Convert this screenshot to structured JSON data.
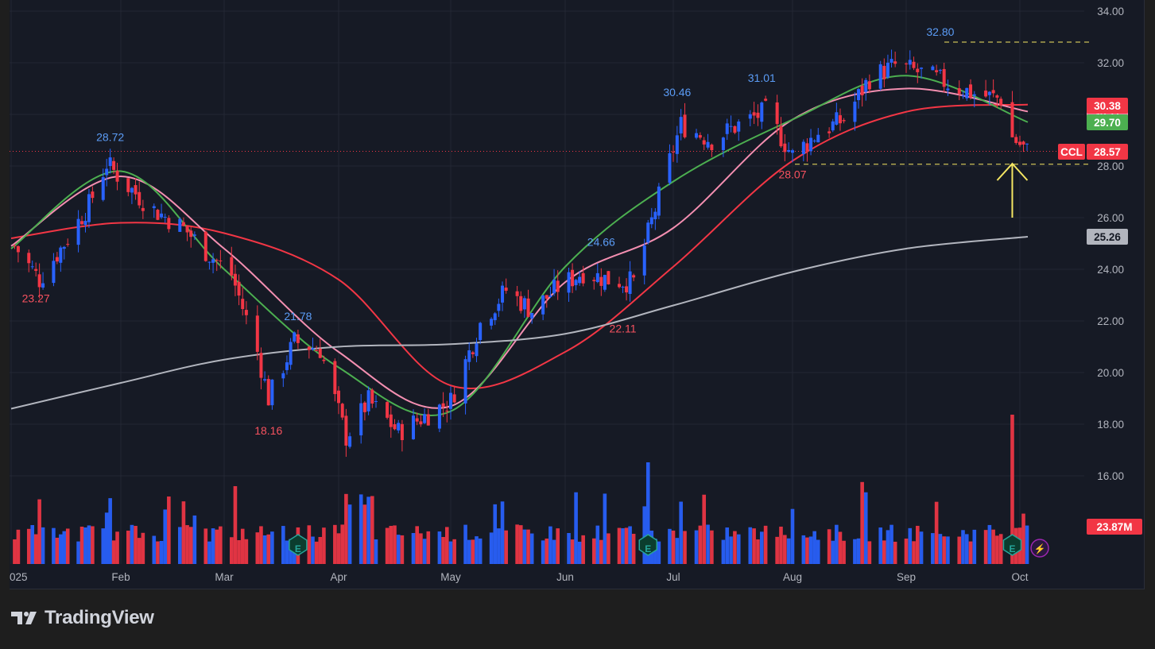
{
  "brand": {
    "name": "TradingView"
  },
  "chart_data": {
    "type": "candlestick",
    "symbol": "CCL",
    "x_axis": {
      "labels": [
        "2025",
        "Feb",
        "Mar",
        "Apr",
        "May",
        "Jun",
        "Jul",
        "Aug",
        "Sep",
        "Oct"
      ]
    },
    "y_axis": {
      "range": [
        14.0,
        34.0
      ],
      "ticks": [
        "16.00",
        "18.00",
        "20.00",
        "22.00",
        "24.00",
        "26.00",
        "28.00",
        "30.00",
        "32.00",
        "34.00"
      ]
    },
    "price_badges": [
      {
        "label": "CCL",
        "value": "28.57",
        "color": "#f23645"
      },
      {
        "label": "",
        "value": "30.38",
        "color": "#f23645"
      },
      {
        "label": "",
        "value": "30.11",
        "color": "#f48fb1"
      },
      {
        "label": "",
        "value": "29.70",
        "color": "#4caf50"
      },
      {
        "label": "",
        "value": "25.26",
        "color": "#b2b5be"
      },
      {
        "label": "",
        "value": "23.87M",
        "color": "#f23645"
      }
    ],
    "annotations": [
      {
        "text": "23.27",
        "x": "2025-01-08",
        "y": 23.27,
        "kind": "low"
      },
      {
        "text": "28.72",
        "x": "2025-01-29",
        "y": 28.72,
        "kind": "high"
      },
      {
        "text": "21.78",
        "x": "2025-03-21",
        "y": 21.78,
        "kind": "high"
      },
      {
        "text": "18.16",
        "x": "2025-03-13",
        "y": 18.16,
        "kind": "low"
      },
      {
        "text": "24.66",
        "x": "2025-06-11",
        "y": 24.66,
        "kind": "high"
      },
      {
        "text": "22.11",
        "x": "2025-06-17",
        "y": 22.11,
        "kind": "low"
      },
      {
        "text": "30.46",
        "x": "2025-07-02",
        "y": 30.46,
        "kind": "high"
      },
      {
        "text": "31.01",
        "x": "2025-07-24",
        "y": 31.01,
        "kind": "high"
      },
      {
        "text": "28.07",
        "x": "2025-08-01",
        "y": 28.07,
        "kind": "low"
      },
      {
        "text": "32.80",
        "x": "2025-09-10",
        "y": 32.8,
        "kind": "high"
      }
    ],
    "levels": [
      {
        "value": 32.8,
        "style": "dashed",
        "color": "#f5e663"
      },
      {
        "value": 28.07,
        "style": "dashed",
        "color": "#f5e663"
      },
      {
        "value": 28.57,
        "style": "dotted",
        "color": "#f23645"
      }
    ],
    "series": [
      {
        "name": "",
        "color": "#f23645",
        "values_at_labels": [
          25.2,
          25.8,
          25.4,
          23.6,
          19.5,
          20.8,
          24.1,
          28.2,
          30.1,
          30.38
        ]
      },
      {
        "name": "",
        "color": "#f48fb1",
        "values_at_labels": [
          24.9,
          27.6,
          24.8,
          20.8,
          18.7,
          23.5,
          25.6,
          29.8,
          31.0,
          30.11
        ]
      },
      {
        "name": "",
        "color": "#4caf50",
        "values_at_labels": [
          24.8,
          27.8,
          24.0,
          20.2,
          18.5,
          24.1,
          27.4,
          29.8,
          31.5,
          29.7
        ]
      },
      {
        "name": "",
        "color": "#b2b5be",
        "values_at_labels": [
          18.6,
          19.6,
          20.5,
          21.0,
          21.1,
          21.5,
          22.6,
          23.9,
          24.8,
          25.26
        ]
      }
    ],
    "volume": {
      "last": "23.87M",
      "events": [
        {
          "date": "2025-03-21",
          "label": "E"
        },
        {
          "date": "2025-06-24",
          "label": "E"
        },
        {
          "date": "2025-09-29",
          "label": "E"
        },
        {
          "date": "2025-10-03",
          "label": "⚡"
        }
      ]
    },
    "marker": {
      "type": "arrow-up",
      "color": "#f5e663",
      "date": "2025-09-29"
    },
    "candles_approx": [
      {
        "d": "2025-01-02",
        "c": 24.9
      },
      {
        "d": "2025-01-09",
        "c": 23.6
      },
      {
        "d": "2025-01-16",
        "c": 25.0
      },
      {
        "d": "2025-01-23",
        "c": 26.5
      },
      {
        "d": "2025-01-28",
        "c": 28.1
      },
      {
        "d": "2025-02-03",
        "c": 27.2
      },
      {
        "d": "2025-02-10",
        "c": 26.3
      },
      {
        "d": "2025-02-18",
        "c": 25.6
      },
      {
        "d": "2025-02-24",
        "c": 24.7
      },
      {
        "d": "2025-03-03",
        "c": 23.8
      },
      {
        "d": "2025-03-10",
        "c": 20.8
      },
      {
        "d": "2025-03-13",
        "c": 19.0
      },
      {
        "d": "2025-03-20",
        "c": 21.2
      },
      {
        "d": "2025-03-27",
        "c": 20.9
      },
      {
        "d": "2025-04-03",
        "c": 17.5
      },
      {
        "d": "2025-04-09",
        "c": 18.9
      },
      {
        "d": "2025-04-17",
        "c": 17.7
      },
      {
        "d": "2025-04-25",
        "c": 18.4
      },
      {
        "d": "2025-05-01",
        "c": 18.9
      },
      {
        "d": "2025-05-09",
        "c": 21.9
      },
      {
        "d": "2025-05-16",
        "c": 23.2
      },
      {
        "d": "2025-05-23",
        "c": 22.4
      },
      {
        "d": "2025-05-30",
        "c": 23.3
      },
      {
        "d": "2025-06-06",
        "c": 23.9
      },
      {
        "d": "2025-06-13",
        "c": 23.6
      },
      {
        "d": "2025-06-20",
        "c": 23.5
      },
      {
        "d": "2025-06-27",
        "c": 26.8
      },
      {
        "d": "2025-07-03",
        "c": 29.6
      },
      {
        "d": "2025-07-11",
        "c": 29.0
      },
      {
        "d": "2025-07-18",
        "c": 29.6
      },
      {
        "d": "2025-07-25",
        "c": 30.1
      },
      {
        "d": "2025-08-01",
        "c": 28.4
      },
      {
        "d": "2025-08-08",
        "c": 29.3
      },
      {
        "d": "2025-08-15",
        "c": 29.8
      },
      {
        "d": "2025-08-22",
        "c": 31.4
      },
      {
        "d": "2025-08-29",
        "c": 31.9
      },
      {
        "d": "2025-09-05",
        "c": 31.6
      },
      {
        "d": "2025-09-12",
        "c": 31.2
      },
      {
        "d": "2025-09-19",
        "c": 30.8
      },
      {
        "d": "2025-09-26",
        "c": 30.6
      },
      {
        "d": "2025-09-29",
        "c": 29.1
      },
      {
        "d": "2025-10-03",
        "c": 28.57
      }
    ]
  }
}
